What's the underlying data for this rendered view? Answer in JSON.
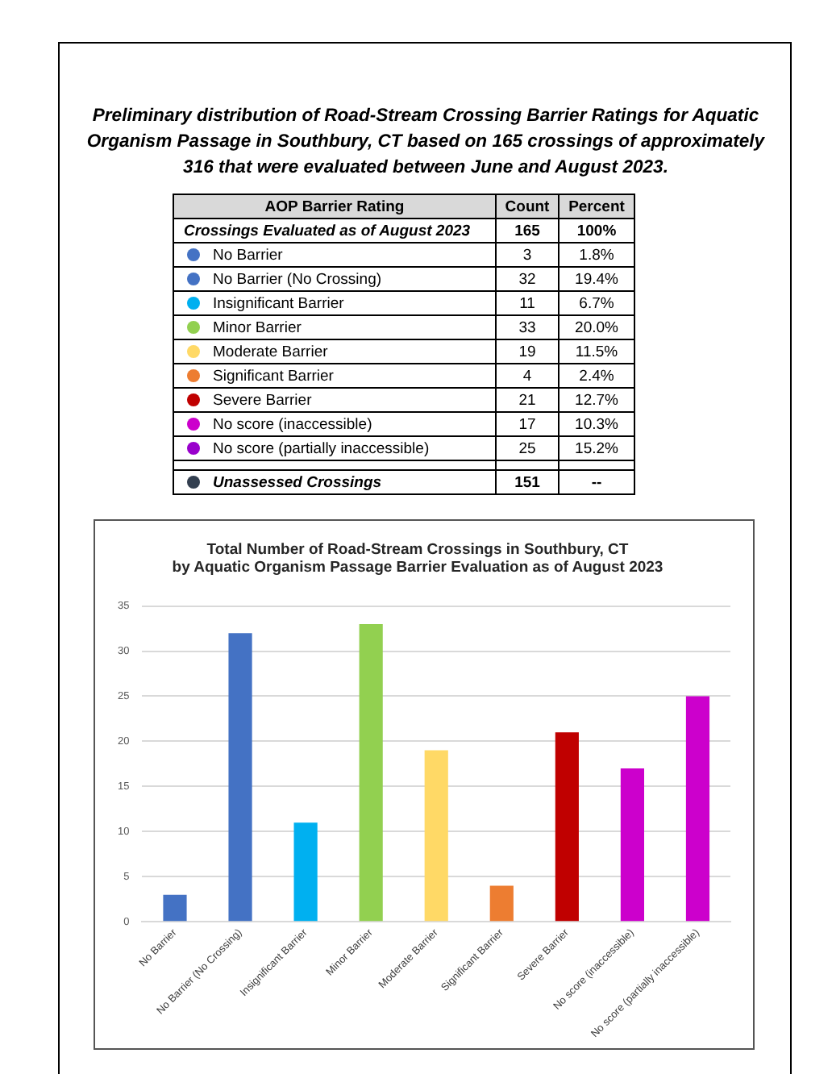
{
  "chart_data": [
    {
      "type": "other",
      "title": "Preliminary distribution of Road-Stream Crossing Barrier Ratings for Aquatic Organism Passage in Southbury, CT based on 165 crossings of approximately 316 that were evaluated between June and August 2023.",
      "annotations": [
        "AOP Barrier Rating",
        "Count",
        "Percent",
        "Crossings Evaluated as of August 2023",
        "165",
        "100%",
        "No Barrier",
        "3",
        "1.8%",
        "No Barrier (No Crossing)",
        "32",
        "19.4%",
        "Insignificant Barrier",
        "11",
        "6.7%",
        "Minor Barrier",
        "33",
        "20.0%",
        "Moderate Barrier",
        "19",
        "11.5%",
        "Significant Barrier",
        "4",
        "2.4%",
        "Severe Barrier",
        "21",
        "12.7%",
        "No score (inaccessible)",
        "17",
        "10.3%",
        "No score (partially inaccessible)",
        "25",
        "15.2%",
        "Unassessed Crossings",
        "151",
        "--"
      ],
      "colors": [
        null,
        null,
        "#4472c4",
        "#4472c4",
        "#00b0f0",
        "#92d050",
        "#ffd966",
        "#ed7d31",
        "#c00000",
        "#cc00cc",
        "#9900cc",
        "#333f50"
      ]
    },
    {
      "type": "bar",
      "title": "Total Number of Road-Stream Crossings in Southbury, CT\nby Aquatic Organism Passage Barrier Evaluation as of August 2023",
      "categories": [
        "No Barrier",
        "No Barrier (No Crossing)",
        "Insignificant Barrier",
        "Minor Barrier",
        "Moderate Barrier",
        "Significant Barrier",
        "Severe Barrier",
        "No score (inaccessible)",
        "No score (partially inaccessible)"
      ],
      "values": [
        3,
        32,
        11,
        33,
        19,
        4,
        21,
        17,
        25
      ],
      "colors": [
        "#4472c4",
        "#4472c4",
        "#00b0f0",
        "#92d050",
        "#ffd966",
        "#ed7d31",
        "#c00000",
        "#cc00cc",
        "#cc00cc"
      ],
      "ylim": [
        0,
        35
      ],
      "yticks": [
        0,
        5,
        10,
        15,
        20,
        25,
        30,
        35
      ],
      "grid": "y",
      "legend": false
    }
  ]
}
